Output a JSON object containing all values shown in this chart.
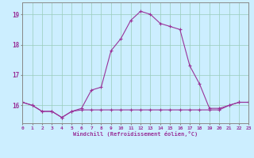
{
  "xlabel": "Windchill (Refroidissement éolien,°C)",
  "background_color": "#cceeff",
  "line_color": "#993399",
  "grid_color": "#99ccbb",
  "hours": [
    0,
    1,
    2,
    3,
    4,
    5,
    6,
    7,
    8,
    9,
    10,
    11,
    12,
    13,
    14,
    15,
    16,
    17,
    18,
    19,
    20,
    21,
    22,
    23
  ],
  "temp": [
    16.1,
    16.0,
    15.8,
    15.8,
    15.6,
    15.8,
    15.9,
    16.5,
    16.6,
    17.8,
    18.2,
    18.8,
    19.1,
    19.0,
    18.7,
    18.6,
    18.5,
    17.3,
    16.7,
    15.9,
    15.9,
    16.0,
    16.1,
    16.1
  ],
  "windchill": [
    16.1,
    16.0,
    15.8,
    15.8,
    15.6,
    15.8,
    15.85,
    15.85,
    15.85,
    15.85,
    15.85,
    15.85,
    15.85,
    15.85,
    15.85,
    15.85,
    15.85,
    15.85,
    15.85,
    15.85,
    15.85,
    16.0,
    16.1,
    16.1
  ],
  "ylim": [
    15.4,
    19.4
  ],
  "yticks": [
    16,
    17,
    18,
    19
  ],
  "xtick_labels": [
    "0",
    "1",
    "2",
    "3",
    "4",
    "5",
    "6",
    "7",
    "8",
    "9",
    "10",
    "11",
    "12",
    "13",
    "14",
    "15",
    "16",
    "17",
    "18",
    "19",
    "20",
    "21",
    "22",
    "23"
  ]
}
